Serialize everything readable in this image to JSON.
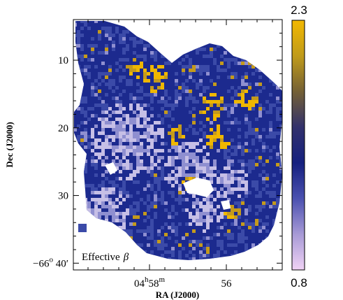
{
  "figure": {
    "panel_label": "Effective",
    "panel_symbol": "β",
    "xlabel": "RA (J2000)",
    "ylabel": "Dec (J2000)",
    "x_ticks": [
      {
        "main": "04",
        "sup1": "h",
        "mid": "58",
        "sup2": "m"
      },
      {
        "main": "56",
        "sup1": "",
        "mid": "",
        "sup2": ""
      }
    ],
    "y_ticks": [
      {
        "label": "10",
        "value": 10
      },
      {
        "label": "20",
        "value": 20
      },
      {
        "label": "30",
        "value": 30
      },
      {
        "label": "40",
        "value": 40
      }
    ],
    "y_last_prefix": "−66",
    "y_last_degree": "o",
    "y_last_suffix": "40′",
    "ylim": [
      4,
      41
    ],
    "colorbar": {
      "max_label": "2.3",
      "min_label": "0.8",
      "range": [
        0.8,
        2.3
      ],
      "colors": [
        "#f0d2f5",
        "#a79ad6",
        "#4b51b0",
        "#15207f",
        "#32316c",
        "#746035",
        "#c09b1a",
        "#f2b800"
      ]
    },
    "map_colors": {
      "deep": "#1c2a8e",
      "mid": "#3b4aa8",
      "light": "#8f8fd0",
      "pale": "#c6bfe6",
      "gold": "#c49a1c",
      "bright_gold": "#efb700"
    }
  }
}
